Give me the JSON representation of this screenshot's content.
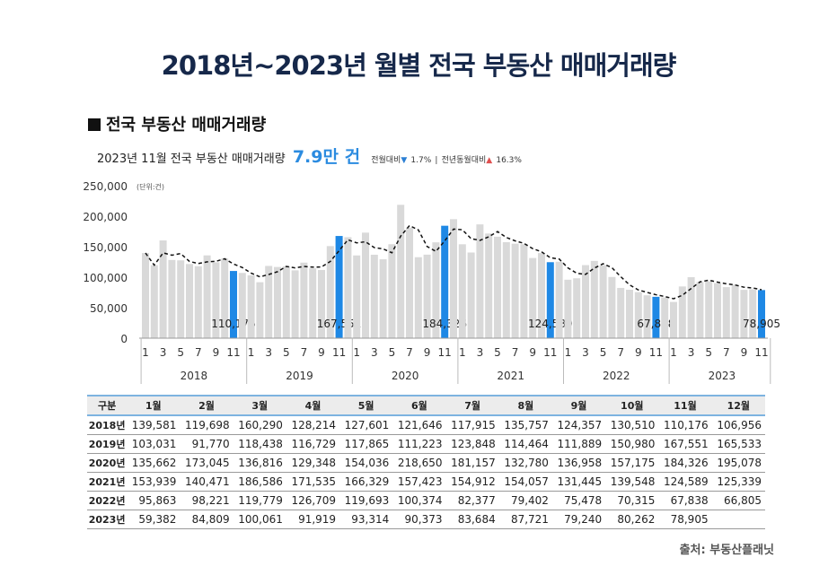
{
  "title": "2018년~2023년 월별 전국 부동산 매매거래량",
  "section_title": "전국 부동산 매매거래량",
  "summary": {
    "prefix": "2023년 11월 전국 부동산 매매거래량",
    "value": "7.9만 건",
    "mom_label": "전월대비",
    "mom_value": "1.7%",
    "mom_dir": "down",
    "sep": "|",
    "yoy_label": "전년동월대비",
    "yoy_value": "16.3%",
    "yoy_dir": "up"
  },
  "source": "출처: 부동산플래닛",
  "colors": {
    "bar": "#d9d9d9",
    "highlight": "#1e88e5",
    "title": "#16284a",
    "accent": "#2b8be0"
  },
  "chart_data": {
    "type": "bar",
    "unit": "(단위:건)",
    "ylim": [
      0,
      250000
    ],
    "yticks": [
      "0",
      "50,000",
      "100,000",
      "150,000",
      "200,000",
      "250,000"
    ],
    "month_ticks": [
      "1",
      "3",
      "5",
      "7",
      "9",
      "11"
    ],
    "years": [
      "2018",
      "2019",
      "2020",
      "2021",
      "2022",
      "2023"
    ],
    "highlight_month": 11,
    "highlight_labels": [
      "110,176",
      "167,551",
      "184,326",
      "124,589",
      "67,838",
      "78,905"
    ],
    "trend": "dashed moving average",
    "series": [
      [
        139581,
        119698,
        160290,
        128214,
        127601,
        121646,
        117915,
        135757,
        124357,
        130510,
        110176,
        106956
      ],
      [
        103031,
        91770,
        118438,
        116729,
        117865,
        111223,
        123848,
        114464,
        111889,
        150980,
        167551,
        165533
      ],
      [
        135662,
        173045,
        136816,
        129348,
        154036,
        218650,
        181157,
        132780,
        136958,
        157175,
        184326,
        195078
      ],
      [
        153939,
        140471,
        186586,
        171535,
        166329,
        157423,
        154912,
        154057,
        131445,
        139548,
        124589,
        125339
      ],
      [
        95863,
        98221,
        119779,
        126709,
        119693,
        100374,
        82377,
        79402,
        75478,
        70315,
        67838,
        66805
      ],
      [
        59382,
        84809,
        100061,
        91919,
        93314,
        90373,
        83684,
        87721,
        79240,
        80262,
        78905
      ]
    ]
  },
  "table": {
    "headers": [
      "구분",
      "1월",
      "2월",
      "3월",
      "4월",
      "5월",
      "6월",
      "7월",
      "8월",
      "9월",
      "10월",
      "11월",
      "12월"
    ],
    "rows": [
      [
        "2018년",
        "139,581",
        "119,698",
        "160,290",
        "128,214",
        "127,601",
        "121,646",
        "117,915",
        "135,757",
        "124,357",
        "130,510",
        "110,176",
        "106,956"
      ],
      [
        "2019년",
        "103,031",
        "91,770",
        "118,438",
        "116,729",
        "117,865",
        "111,223",
        "123,848",
        "114,464",
        "111,889",
        "150,980",
        "167,551",
        "165,533"
      ],
      [
        "2020년",
        "135,662",
        "173,045",
        "136,816",
        "129,348",
        "154,036",
        "218,650",
        "181,157",
        "132,780",
        "136,958",
        "157,175",
        "184,326",
        "195,078"
      ],
      [
        "2021년",
        "153,939",
        "140,471",
        "186,586",
        "171,535",
        "166,329",
        "157,423",
        "154,912",
        "154,057",
        "131,445",
        "139,548",
        "124,589",
        "125,339"
      ],
      [
        "2022년",
        "95,863",
        "98,221",
        "119,779",
        "126,709",
        "119,693",
        "100,374",
        "82,377",
        "79,402",
        "75,478",
        "70,315",
        "67,838",
        "66,805"
      ],
      [
        "2023년",
        "59,382",
        "84,809",
        "100,061",
        "91,919",
        "93,314",
        "90,373",
        "83,684",
        "87,721",
        "79,240",
        "80,262",
        "78,905",
        ""
      ]
    ]
  }
}
